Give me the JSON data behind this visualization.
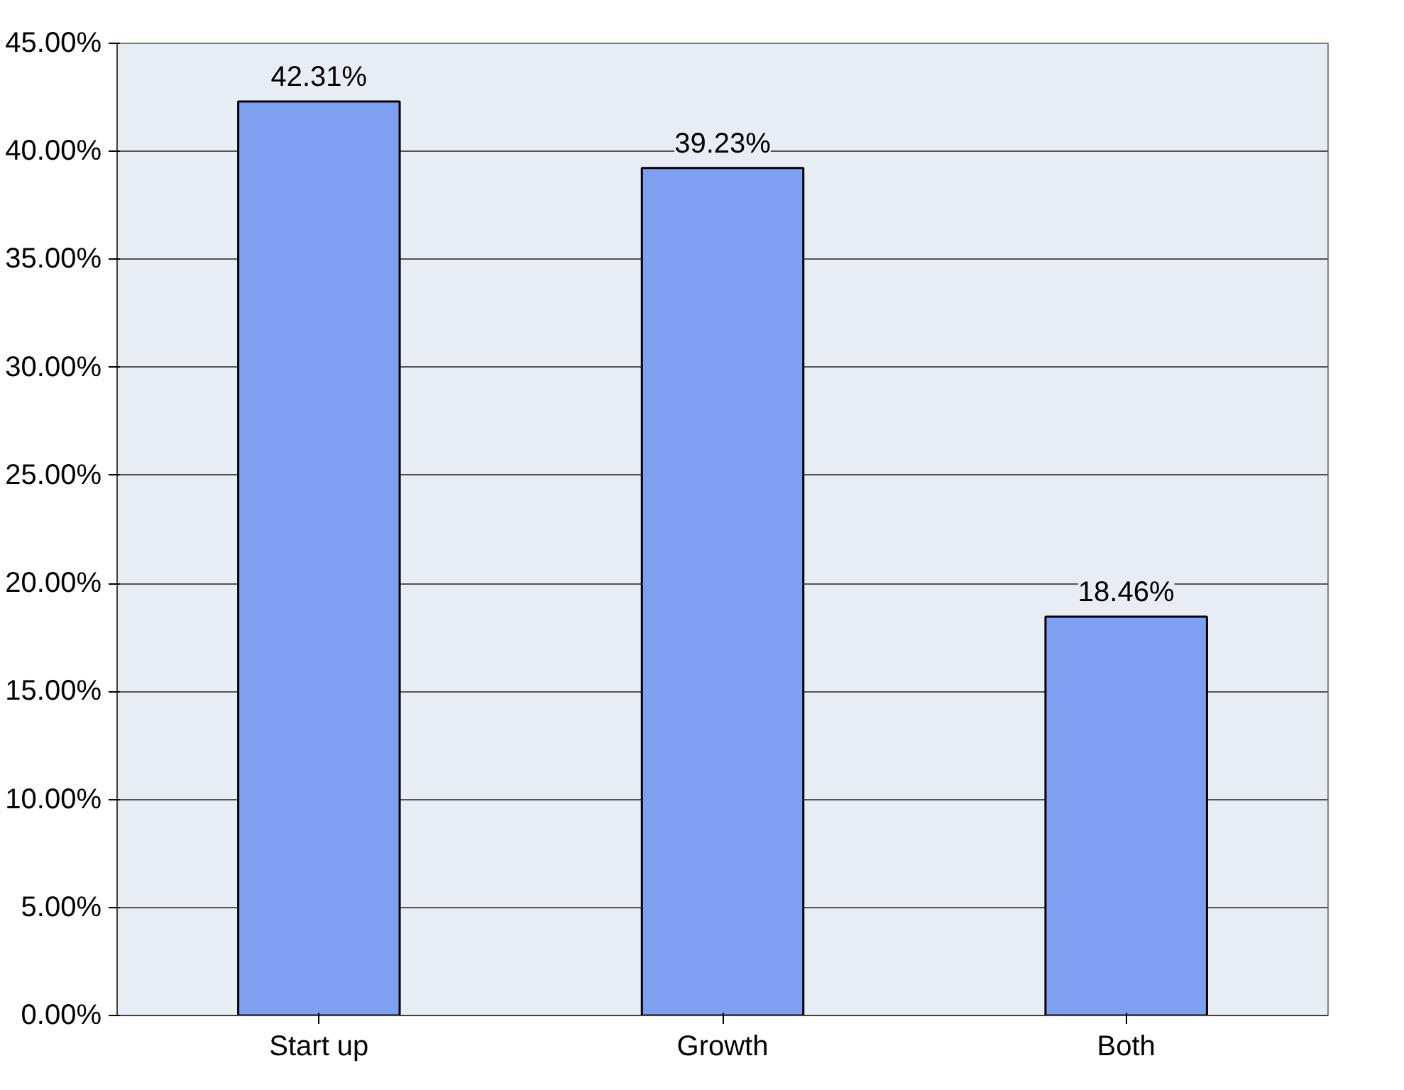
{
  "chart_data": {
    "type": "bar",
    "categories": [
      "Start up",
      "Growth",
      "Both"
    ],
    "values": [
      42.31,
      39.23,
      18.46
    ],
    "value_labels": [
      "42.31%",
      "39.23%",
      "18.46%"
    ],
    "color": "#7f9ff0",
    "ylim": [
      0,
      45
    ],
    "yticks": [
      {
        "value": 0,
        "label": "0.00%"
      },
      {
        "value": 5,
        "label": "5.00%"
      },
      {
        "value": 10,
        "label": "10.00%"
      },
      {
        "value": 15,
        "label": "15.00%"
      },
      {
        "value": 20,
        "label": "20.00%"
      },
      {
        "value": 25,
        "label": "25.00%"
      },
      {
        "value": 30,
        "label": "30.00%"
      },
      {
        "value": 35,
        "label": "35.00%"
      },
      {
        "value": 40,
        "label": "40.00%"
      },
      {
        "value": 45,
        "label": "45.00%"
      }
    ],
    "grid": "y"
  }
}
